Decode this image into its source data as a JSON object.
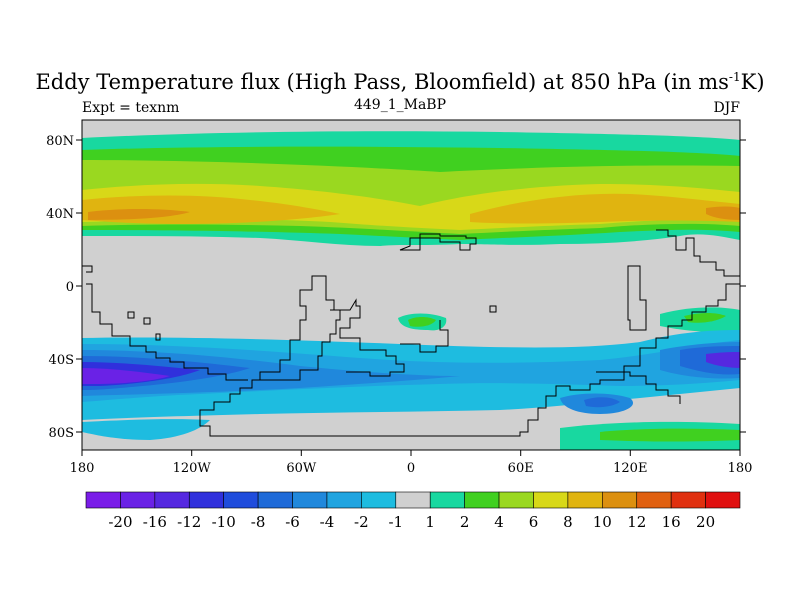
{
  "title_main": "Eddy Temperature flux (High Pass, Bloomfield) at 850 hPa (in ms",
  "title_sup": "-1",
  "title_end": "K)",
  "expt": "Expt = texnm",
  "run_id": "449_1_MaBP",
  "season": "DJF",
  "lat_labels": [
    "80N",
    "40N",
    "0",
    "40S",
    "80S"
  ],
  "lon_labels": [
    "180",
    "120W",
    "60W",
    "0",
    "60E",
    "120E",
    "180"
  ],
  "colorbar": {
    "colors": [
      "#7a1de8",
      "#6a22e6",
      "#5528e0",
      "#3030dc",
      "#1f4cdc",
      "#1f6ad8",
      "#2088dc",
      "#20a4e0",
      "#1ebce0",
      "#d0d0d0",
      "#18d8a0",
      "#40d020",
      "#9ad820",
      "#d8d818",
      "#e0b410",
      "#dc9010",
      "#e06010",
      "#e03010",
      "#e01010"
    ],
    "labels": [
      "-20",
      "-16",
      "-12",
      "-10",
      "-8",
      "-6",
      "-4",
      "-2",
      "-1",
      "1",
      "2",
      "4",
      "6",
      "8",
      "10",
      "12",
      "16",
      "20"
    ]
  },
  "palette": {
    "land_bg": "#d0d0d0",
    "coast": "#000000"
  }
}
